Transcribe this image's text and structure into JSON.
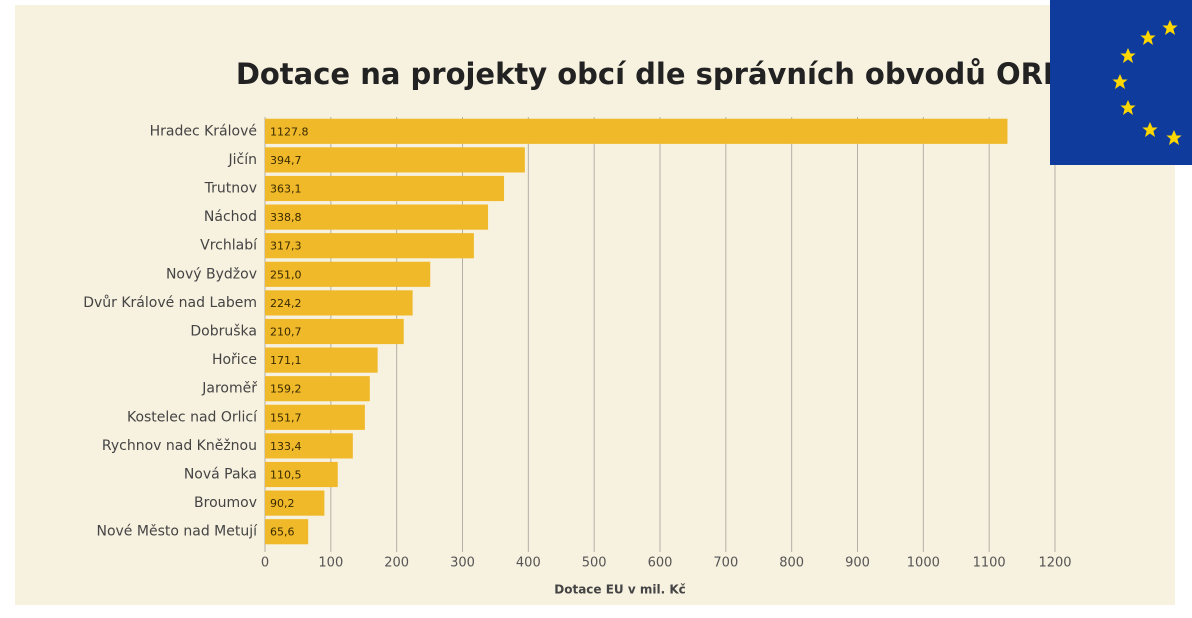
{
  "chart_data": {
    "type": "bar",
    "orientation": "horizontal",
    "title": "Dotace na projekty obcí dle správních obvodů ORP",
    "categories": [
      "Hradec Králové",
      "Jičín",
      "Trutnov",
      "Náchod",
      "Vrchlabí",
      "Nový Bydžov",
      "Dvůr Králové nad Labem",
      "Dobruška",
      "Hořice",
      "Jaroměř",
      "Kostelec nad Orlicí",
      "Rychnov nad Kněžnou",
      "Nová Paka",
      "Broumov",
      "Nové Město nad Metují"
    ],
    "values": [
      1127.8,
      394.7,
      363.1,
      338.8,
      317.3,
      251.0,
      224.2,
      210.7,
      171.1,
      159.2,
      151.7,
      133.4,
      110.5,
      90.2,
      65.6
    ],
    "value_labels": [
      "1127.8",
      "394,7",
      "363,1",
      "338,8",
      "317,3",
      "251,0",
      "224,2",
      "210,7",
      "171,1",
      "159,2",
      "151,7",
      "133,4",
      "110,5",
      "90,2",
      "65,6"
    ],
    "color": "#f0b92a",
    "xlabel": "Dotace EU v mil. Kč",
    "xlim": [
      0,
      1200
    ],
    "xticks": [
      0,
      100,
      200,
      300,
      400,
      500,
      600,
      700,
      800,
      900,
      1000,
      1100,
      1200
    ],
    "grid": true
  }
}
